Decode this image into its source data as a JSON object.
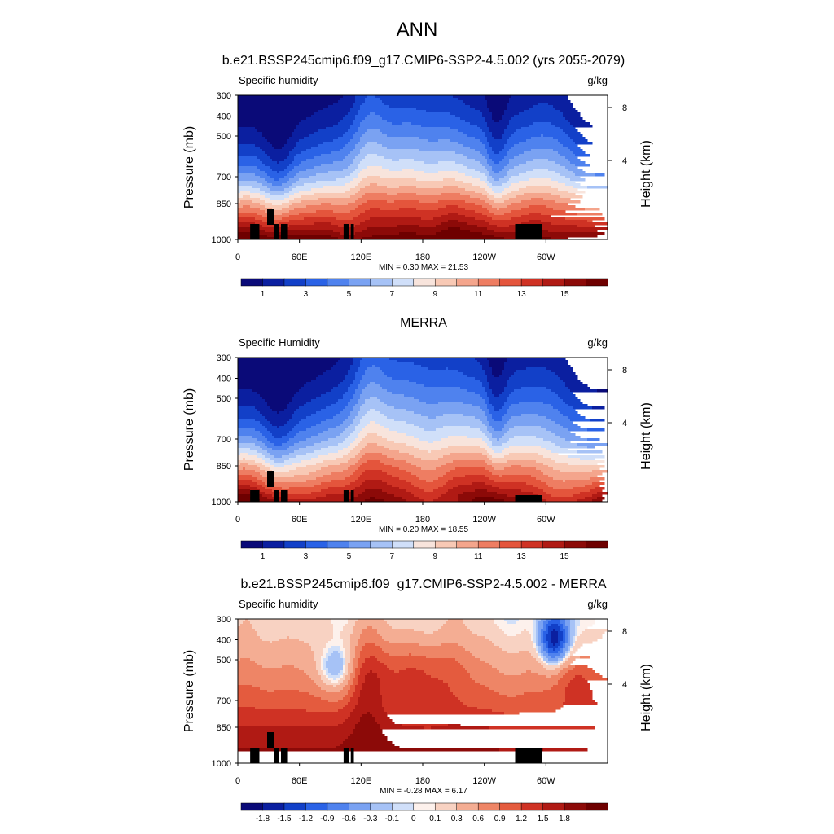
{
  "figure": {
    "title": "ANN"
  },
  "colorbars": {
    "absolute": {
      "colors": [
        "#0a0a78",
        "#0b1fa0",
        "#1240c8",
        "#2a62e6",
        "#4f82ee",
        "#7aa2f2",
        "#a6c2f6",
        "#d0dff9",
        "#f8e4dc",
        "#f8c9b5",
        "#f4a58c",
        "#ee7d62",
        "#e4553c",
        "#cf3224",
        "#b01a14",
        "#8c0a08",
        "#6e0000"
      ],
      "tick_labels": [
        "1",
        "3",
        "5",
        "7",
        "9",
        "11",
        "13",
        "15"
      ]
    },
    "difference": {
      "colors": [
        "#0a0a78",
        "#0b1fa0",
        "#1240c8",
        "#2a62e6",
        "#4f82ee",
        "#7aa2f2",
        "#a6c2f6",
        "#d0dff9",
        "#fdf1ec",
        "#f8d2c2",
        "#f4ad93",
        "#ee8566",
        "#e45b3e",
        "#cf3224",
        "#b01a14",
        "#8c0a08",
        "#6e0000"
      ],
      "tick_labels": [
        "-1.8",
        "-1.5",
        "-1.2",
        "-0.9",
        "-0.6",
        "-0.3",
        "-0.1",
        "0",
        "0.1",
        "0.3",
        "0.6",
        "0.9",
        "1.2",
        "1.5",
        "1.8"
      ]
    }
  },
  "chart_data": [
    {
      "type": "heatmap",
      "title": "b.e21.BSSP245cmip6.f09_g17.CMIP6-SSP2-4.5.002 (yrs 2055-2079)",
      "subtitle_left": "Specific humidity",
      "units": "g/kg",
      "ylabel": "Pressure (mb)",
      "ylabel_right": "Height (km)",
      "yticks": [
        "300",
        "400",
        "500",
        "700",
        "850",
        "1000"
      ],
      "yticks_right": [
        "8",
        "4"
      ],
      "xticks": [
        "0",
        "60E",
        "120E",
        "180",
        "120W",
        "60W"
      ],
      "stats_text": "MIN =   0.30  MAX =  21.53",
      "min": 0.3,
      "max": 21.53,
      "colorbar": "absolute"
    },
    {
      "type": "heatmap",
      "title": "MERRA",
      "subtitle_left": "Specific Humidity",
      "units": "g/kg",
      "ylabel": "Pressure (mb)",
      "ylabel_right": "Height (km)",
      "yticks": [
        "300",
        "400",
        "500",
        "700",
        "850",
        "1000"
      ],
      "yticks_right": [
        "8",
        "4"
      ],
      "xticks": [
        "0",
        "60E",
        "120E",
        "180",
        "120W",
        "60W"
      ],
      "stats_text": "MIN =   0.20  MAX =  18.55",
      "min": 0.2,
      "max": 18.55,
      "colorbar": "absolute"
    },
    {
      "type": "heatmap",
      "title": "b.e21.BSSP245cmip6.f09_g17.CMIP6-SSP2-4.5.002 - MERRA",
      "subtitle_left": "Specific humidity",
      "units": "g/kg",
      "ylabel": "Pressure (mb)",
      "ylabel_right": "Height (km)",
      "yticks": [
        "300",
        "400",
        "500",
        "700",
        "850",
        "1000"
      ],
      "yticks_right": [
        "8",
        "4"
      ],
      "xticks": [
        "0",
        "60E",
        "120E",
        "180",
        "120W",
        "60W"
      ],
      "stats_text": "MIN =  -0.28  MAX =   6.17",
      "min": -0.28,
      "max": 6.17,
      "colorbar": "difference"
    }
  ]
}
